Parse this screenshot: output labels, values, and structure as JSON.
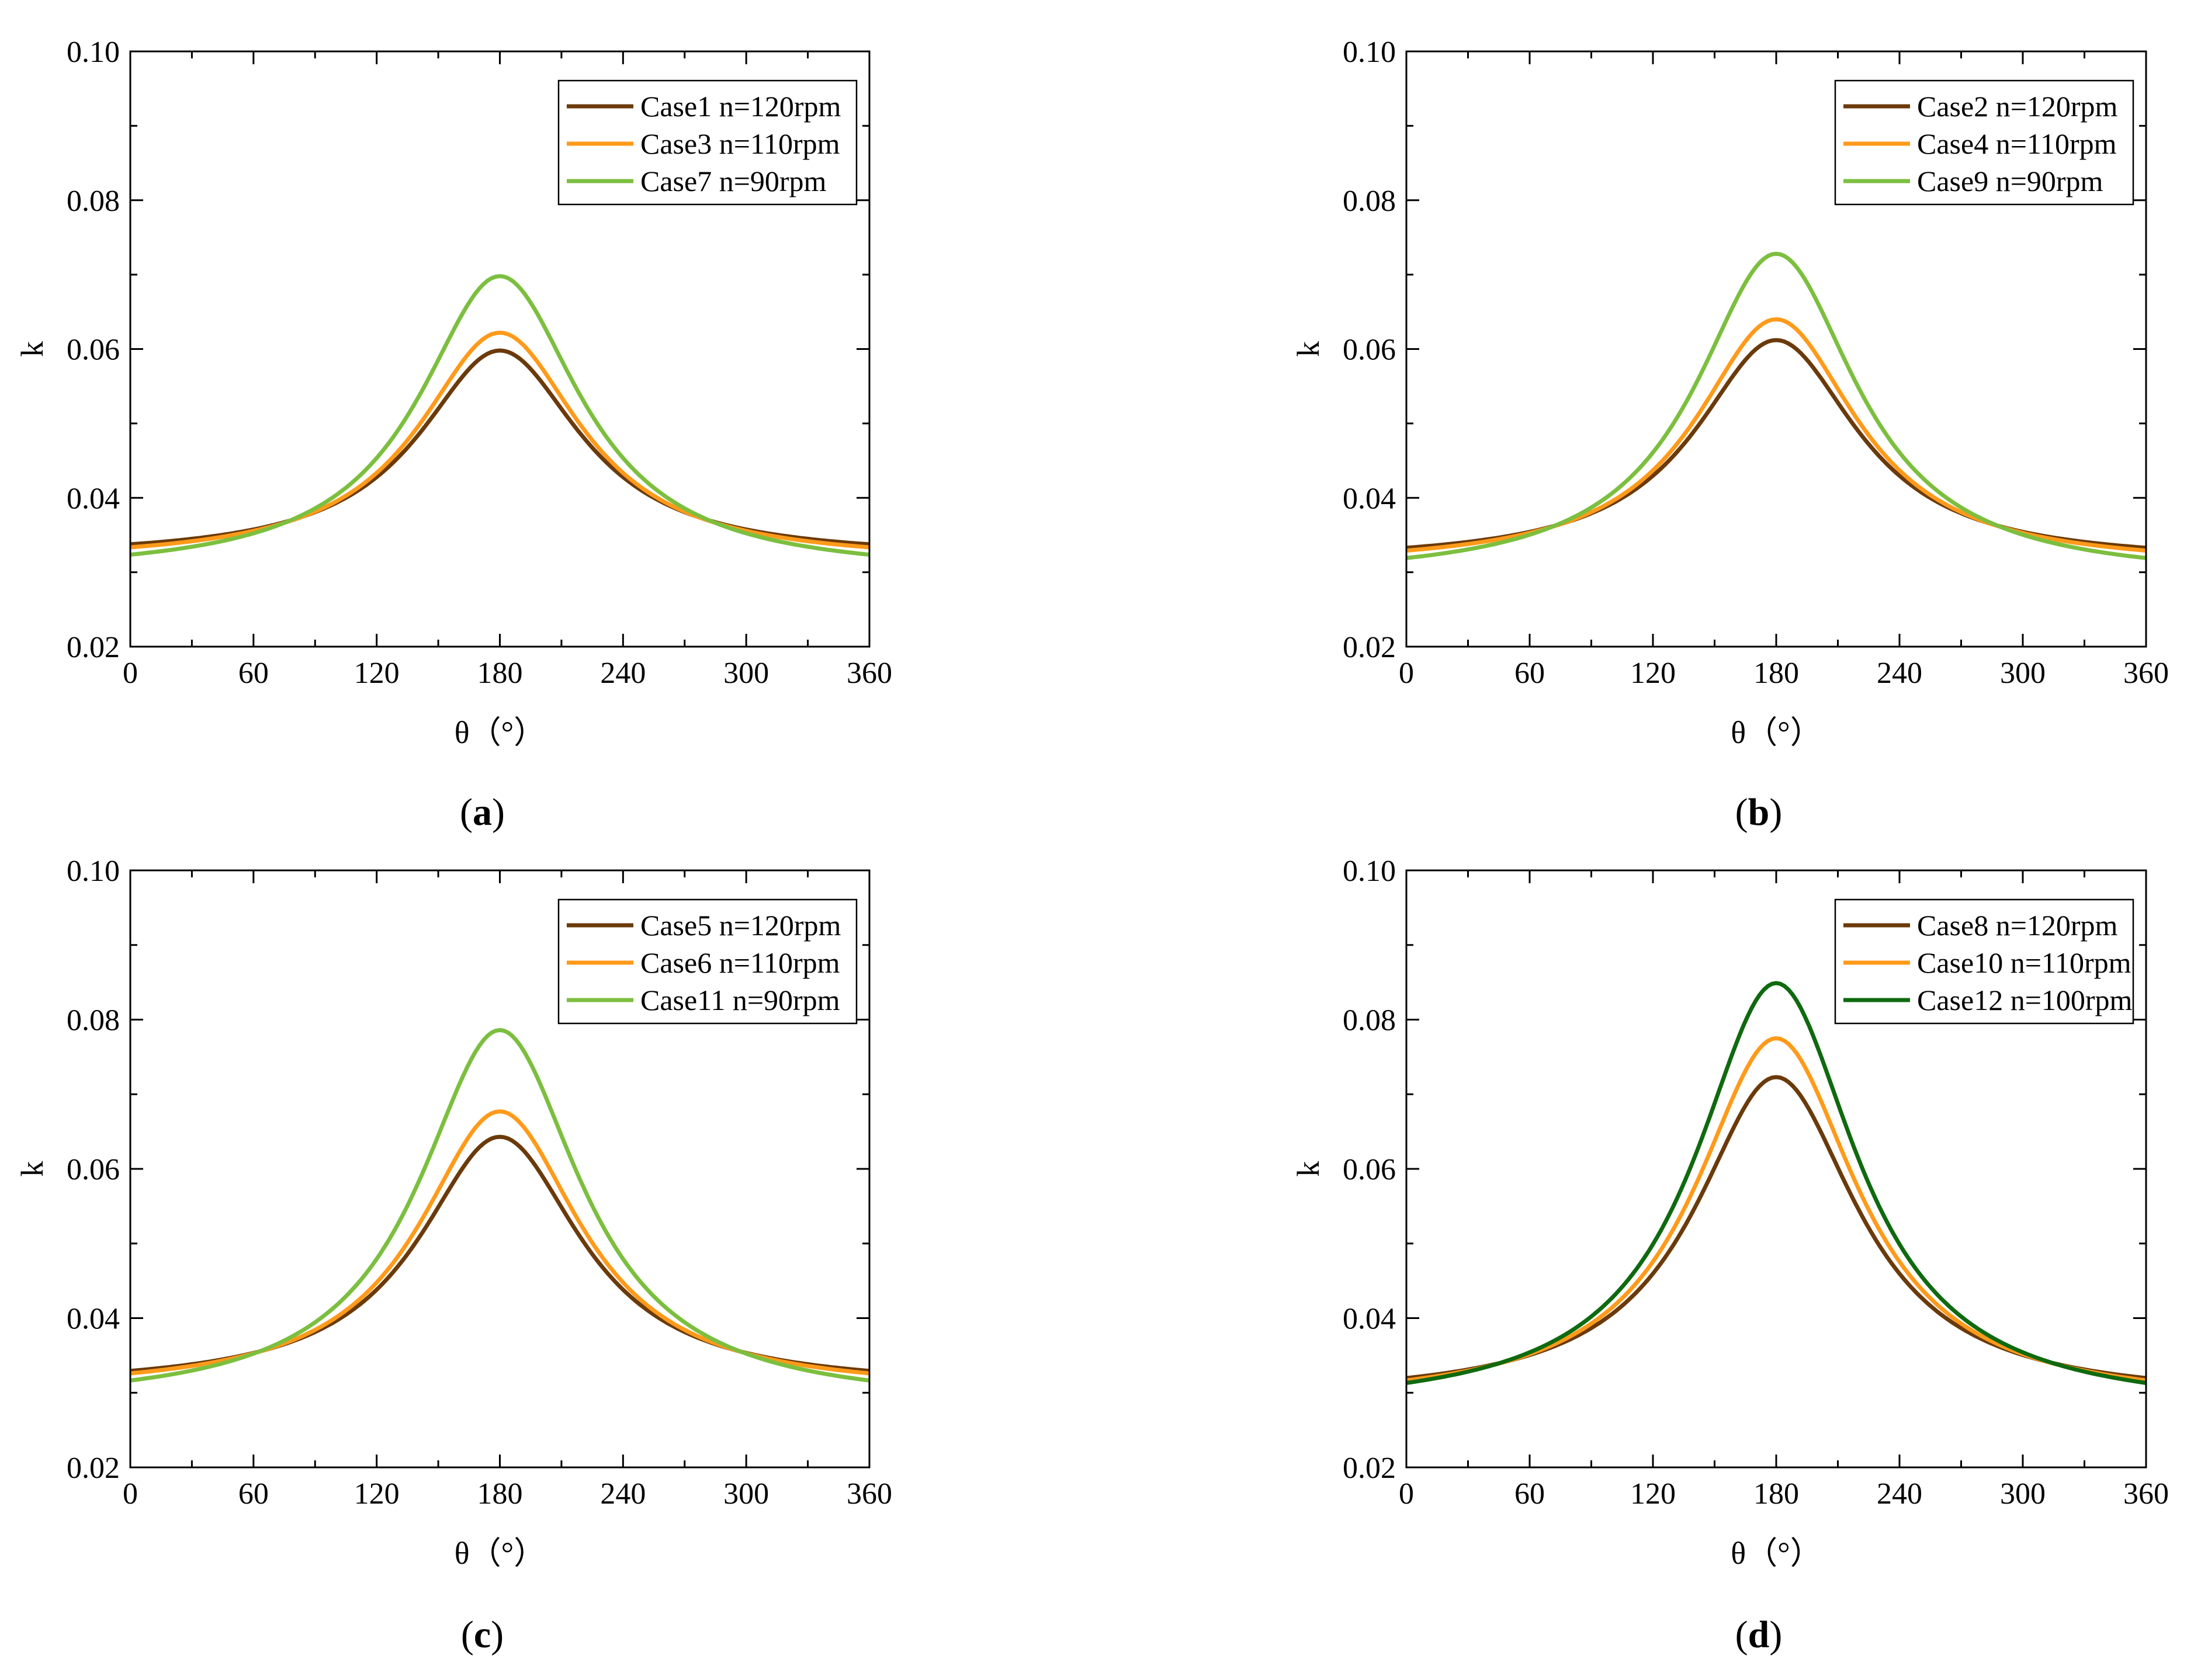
{
  "chart_data": [
    {
      "type": "line",
      "panel_label": "a",
      "xlabel": "θ（°）",
      "ylabel": "k",
      "xlim": [
        0,
        360
      ],
      "ylim": [
        0.02,
        0.1
      ],
      "xticks": [
        "0",
        "60",
        "120",
        "180",
        "240",
        "300",
        "360"
      ],
      "yticks": [
        "0.02",
        "0.04",
        "0.06",
        "0.08",
        "0.10"
      ],
      "legend_position": "top-right",
      "series": [
        {
          "name": "Case1 n=120rpm",
          "color": "#6b3a0a",
          "min": 0.0319,
          "peak": 0.0598
        },
        {
          "name": "Case3 n=110rpm",
          "color": "#ff9a1a",
          "min": 0.0313,
          "peak": 0.0622
        },
        {
          "name": "Case7 n=90rpm",
          "color": "#7cbf3f",
          "min": 0.0297,
          "peak": 0.0698
        }
      ]
    },
    {
      "type": "line",
      "panel_label": "b",
      "xlabel": "θ（°）",
      "ylabel": "k",
      "xlim": [
        0,
        360
      ],
      "ylim": [
        0.02,
        0.1
      ],
      "xticks": [
        "0",
        "60",
        "120",
        "180",
        "240",
        "300",
        "360"
      ],
      "yticks": [
        "0.02",
        "0.04",
        "0.06",
        "0.08",
        "0.10"
      ],
      "legend_position": "top-right",
      "series": [
        {
          "name": "Case2 n=120rpm",
          "color": "#6b3a0a",
          "min": 0.0313,
          "peak": 0.0612
        },
        {
          "name": "Case4 n=110rpm",
          "color": "#ff9a1a",
          "min": 0.0307,
          "peak": 0.064
        },
        {
          "name": "Case9 n=90rpm",
          "color": "#7cbf3f",
          "min": 0.029,
          "peak": 0.0728
        }
      ]
    },
    {
      "type": "line",
      "panel_label": "c",
      "xlabel": "θ（°）",
      "ylabel": "k",
      "xlim": [
        0,
        360
      ],
      "ylim": [
        0.02,
        0.1
      ],
      "xticks": [
        "0",
        "60",
        "120",
        "180",
        "240",
        "300",
        "360"
      ],
      "yticks": [
        "0.02",
        "0.04",
        "0.06",
        "0.08",
        "0.10"
      ],
      "legend_position": "top-right",
      "series": [
        {
          "name": "Case5 n=120rpm",
          "color": "#6b3a0a",
          "min": 0.0307,
          "peak": 0.0643
        },
        {
          "name": "Case6 n=110rpm",
          "color": "#ff9a1a",
          "min": 0.0301,
          "peak": 0.0677
        },
        {
          "name": "Case11 n=90rpm",
          "color": "#7cbf3f",
          "min": 0.0283,
          "peak": 0.0786
        }
      ]
    },
    {
      "type": "line",
      "panel_label": "d",
      "xlabel": "θ（°）",
      "ylabel": "k",
      "xlim": [
        0,
        360
      ],
      "ylim": [
        0.02,
        0.1
      ],
      "xticks": [
        "0",
        "60",
        "120",
        "180",
        "240",
        "300",
        "360"
      ],
      "yticks": [
        "0.02",
        "0.04",
        "0.06",
        "0.08",
        "0.10"
      ],
      "legend_position": "top-right",
      "series": [
        {
          "name": "Case8 n=120rpm",
          "color": "#6b3a0a",
          "min": 0.0291,
          "peak": 0.0723
        },
        {
          "name": "Case10 n=110rpm",
          "color": "#ff9a1a",
          "min": 0.0284,
          "peak": 0.0775
        },
        {
          "name": "Case12 n=100rpm",
          "color": "#0f6a0f",
          "min": 0.0275,
          "peak": 0.0849
        }
      ]
    }
  ]
}
